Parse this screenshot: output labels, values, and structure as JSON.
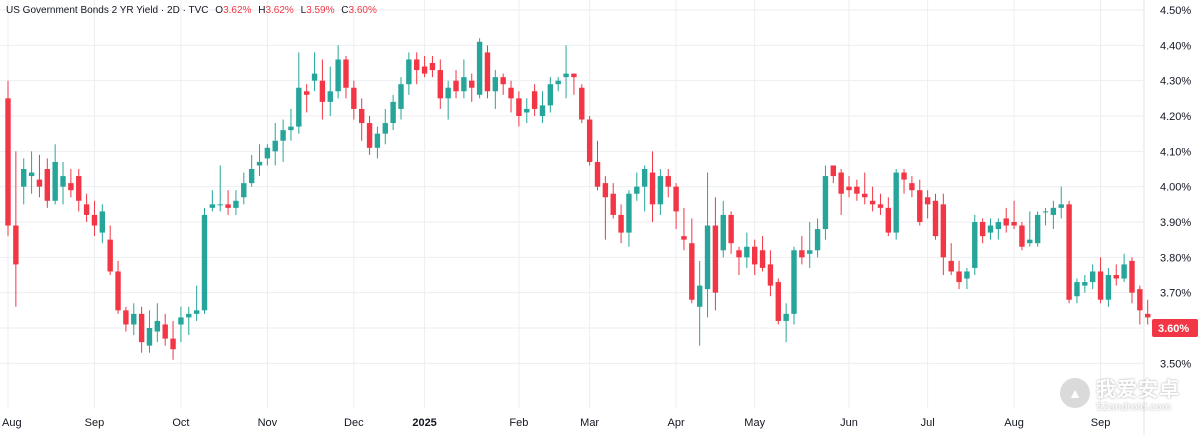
{
  "legend": {
    "symbol": "US Government Bonds 2 YR Yield · 2D · TVC",
    "o_label": "O",
    "o_value": "3.62%",
    "h_label": "H",
    "h_value": "3.62%",
    "l_label": "L",
    "l_value": "3.59%",
    "c_label": "C",
    "c_value": "3.60%"
  },
  "price_tag": "3.60%",
  "watermark": {
    "title": "我爱安卓",
    "subtitle": "52android.com"
  },
  "colors": {
    "up": "#26a69a",
    "down": "#f23645",
    "grid": "#eceef1",
    "text": "#131722",
    "tag": "#f23645"
  },
  "chart_data": {
    "type": "candlestick",
    "ylim": [
      3.45,
      4.5
    ],
    "y_ticks": [
      "4.50%",
      "4.40%",
      "4.30%",
      "4.20%",
      "4.10%",
      "4.00%",
      "3.90%",
      "3.80%",
      "3.70%",
      "3.60%",
      "3.50%"
    ],
    "y_tick_values": [
      4.5,
      4.4,
      4.3,
      4.2,
      4.1,
      4.0,
      3.9,
      3.8,
      3.7,
      3.6,
      3.5
    ],
    "x_labels": [
      {
        "label": "Aug",
        "index": 0,
        "bold": false
      },
      {
        "label": "Sep",
        "index": 11,
        "bold": false
      },
      {
        "label": "Oct",
        "index": 22,
        "bold": false
      },
      {
        "label": "Nov",
        "index": 33,
        "bold": false
      },
      {
        "label": "Dec",
        "index": 44,
        "bold": false
      },
      {
        "label": "2025",
        "index": 53,
        "bold": true
      },
      {
        "label": "Feb",
        "index": 65,
        "bold": false
      },
      {
        "label": "Mar",
        "index": 74,
        "bold": false
      },
      {
        "label": "Apr",
        "index": 85,
        "bold": false
      },
      {
        "label": "May",
        "index": 95,
        "bold": false
      },
      {
        "label": "Jun",
        "index": 107,
        "bold": false
      },
      {
        "label": "Jul",
        "index": 117,
        "bold": false
      },
      {
        "label": "Aug",
        "index": 128,
        "bold": false
      },
      {
        "label": "Sep",
        "index": 139,
        "bold": false
      }
    ],
    "candles": [
      [
        4.25,
        4.3,
        3.86,
        3.89
      ],
      [
        3.89,
        4.1,
        3.66,
        3.78
      ],
      [
        4.0,
        4.08,
        3.95,
        4.05
      ],
      [
        4.03,
        4.1,
        3.98,
        4.04
      ],
      [
        4.02,
        4.09,
        3.97,
        4.0
      ],
      [
        4.05,
        4.08,
        3.94,
        3.96
      ],
      [
        3.96,
        4.12,
        3.95,
        4.07
      ],
      [
        4.0,
        4.07,
        3.95,
        4.03
      ],
      [
        4.01,
        4.05,
        3.97,
        3.99
      ],
      [
        4.03,
        4.05,
        3.93,
        3.96
      ],
      [
        3.95,
        3.98,
        3.9,
        3.92
      ],
      [
        3.92,
        3.96,
        3.86,
        3.89
      ],
      [
        3.87,
        3.95,
        3.84,
        3.93
      ],
      [
        3.85,
        3.89,
        3.75,
        3.76
      ],
      [
        3.76,
        3.79,
        3.64,
        3.65
      ],
      [
        3.65,
        3.66,
        3.59,
        3.61
      ],
      [
        3.61,
        3.67,
        3.58,
        3.64
      ],
      [
        3.64,
        3.66,
        3.53,
        3.56
      ],
      [
        3.55,
        3.65,
        3.53,
        3.6
      ],
      [
        3.59,
        3.67,
        3.56,
        3.62
      ],
      [
        3.61,
        3.64,
        3.55,
        3.57
      ],
      [
        3.57,
        3.62,
        3.51,
        3.54
      ],
      [
        3.61,
        3.66,
        3.56,
        3.63
      ],
      [
        3.63,
        3.66,
        3.58,
        3.64
      ],
      [
        3.64,
        3.72,
        3.62,
        3.65
      ],
      [
        3.65,
        3.94,
        3.64,
        3.92
      ],
      [
        3.94,
        3.99,
        3.93,
        3.95
      ],
      [
        3.95,
        4.06,
        3.93,
        3.95
      ],
      [
        3.95,
        3.99,
        3.92,
        3.94
      ],
      [
        3.94,
        3.99,
        3.92,
        3.96
      ],
      [
        3.97,
        4.04,
        3.95,
        4.01
      ],
      [
        4.01,
        4.09,
        4.0,
        4.05
      ],
      [
        4.06,
        4.12,
        4.03,
        4.07
      ],
      [
        4.08,
        4.12,
        4.06,
        4.11
      ],
      [
        4.1,
        4.18,
        4.06,
        4.13
      ],
      [
        4.13,
        4.19,
        4.07,
        4.16
      ],
      [
        4.16,
        4.22,
        4.13,
        4.17
      ],
      [
        4.17,
        4.38,
        4.15,
        4.28
      ],
      [
        4.27,
        4.29,
        4.21,
        4.26
      ],
      [
        4.3,
        4.38,
        4.27,
        4.32
      ],
      [
        4.3,
        4.36,
        4.19,
        4.24
      ],
      [
        4.24,
        4.34,
        4.2,
        4.27
      ],
      [
        4.27,
        4.4,
        4.25,
        4.36
      ],
      [
        4.36,
        4.37,
        4.25,
        4.28
      ],
      [
        4.28,
        4.3,
        4.19,
        4.22
      ],
      [
        4.22,
        4.25,
        4.13,
        4.18
      ],
      [
        4.18,
        4.2,
        4.09,
        4.11
      ],
      [
        4.11,
        4.17,
        4.08,
        4.15
      ],
      [
        4.15,
        4.22,
        4.12,
        4.18
      ],
      [
        4.18,
        4.26,
        4.16,
        4.24
      ],
      [
        4.22,
        4.31,
        4.19,
        4.29
      ],
      [
        4.29,
        4.38,
        4.26,
        4.36
      ],
      [
        4.36,
        4.38,
        4.29,
        4.33
      ],
      [
        4.34,
        4.37,
        4.31,
        4.32
      ],
      [
        4.35,
        4.37,
        4.31,
        4.33
      ],
      [
        4.33,
        4.36,
        4.22,
        4.25
      ],
      [
        4.25,
        4.3,
        4.19,
        4.28
      ],
      [
        4.3,
        4.33,
        4.25,
        4.27
      ],
      [
        4.27,
        4.36,
        4.25,
        4.31
      ],
      [
        4.3,
        4.32,
        4.24,
        4.28
      ],
      [
        4.26,
        4.42,
        4.25,
        4.41
      ],
      [
        4.38,
        4.4,
        4.25,
        4.27
      ],
      [
        4.27,
        4.33,
        4.22,
        4.31
      ],
      [
        4.31,
        4.32,
        4.26,
        4.29
      ],
      [
        4.28,
        4.3,
        4.21,
        4.25
      ],
      [
        4.25,
        4.27,
        4.17,
        4.2
      ],
      [
        4.21,
        4.25,
        4.18,
        4.22
      ],
      [
        4.27,
        4.29,
        4.2,
        4.22
      ],
      [
        4.2,
        4.27,
        4.18,
        4.23
      ],
      [
        4.23,
        4.31,
        4.21,
        4.29
      ],
      [
        4.29,
        4.31,
        4.27,
        4.3
      ],
      [
        4.31,
        4.4,
        4.25,
        4.32
      ],
      [
        4.32,
        4.32,
        4.26,
        4.31
      ],
      [
        4.28,
        4.29,
        4.18,
        4.19
      ],
      [
        4.19,
        4.2,
        4.06,
        4.07
      ],
      [
        4.07,
        4.13,
        3.99,
        4.0
      ],
      [
        4.01,
        4.03,
        3.85,
        3.97
      ],
      [
        3.98,
        4.01,
        3.91,
        3.92
      ],
      [
        3.92,
        3.95,
        3.84,
        3.87
      ],
      [
        3.87,
        3.99,
        3.83,
        3.98
      ],
      [
        3.98,
        4.04,
        3.96,
        4.0
      ],
      [
        4.0,
        4.06,
        3.93,
        4.05
      ],
      [
        4.04,
        4.1,
        3.9,
        3.95
      ],
      [
        3.95,
        4.05,
        3.92,
        4.03
      ],
      [
        4.03,
        4.05,
        3.97,
        4.0
      ],
      [
        4.0,
        4.01,
        3.88,
        3.93
      ],
      [
        3.86,
        3.94,
        3.82,
        3.85
      ],
      [
        3.84,
        3.91,
        3.67,
        3.68
      ],
      [
        3.66,
        3.79,
        3.55,
        3.72
      ],
      [
        3.71,
        4.04,
        3.63,
        3.89
      ],
      [
        3.89,
        3.97,
        3.65,
        3.7
      ],
      [
        3.82,
        3.96,
        3.8,
        3.92
      ],
      [
        3.92,
        3.93,
        3.81,
        3.84
      ],
      [
        3.82,
        3.83,
        3.75,
        3.8
      ],
      [
        3.8,
        3.87,
        3.77,
        3.83
      ],
      [
        3.83,
        3.85,
        3.75,
        3.78
      ],
      [
        3.82,
        3.86,
        3.76,
        3.77
      ],
      [
        3.78,
        3.82,
        3.69,
        3.72
      ],
      [
        3.73,
        3.74,
        3.61,
        3.62
      ],
      [
        3.62,
        3.67,
        3.56,
        3.64
      ],
      [
        3.64,
        3.83,
        3.61,
        3.82
      ],
      [
        3.82,
        3.86,
        3.78,
        3.8
      ],
      [
        3.81,
        3.9,
        3.77,
        3.82
      ],
      [
        3.82,
        3.91,
        3.8,
        3.88
      ],
      [
        3.88,
        4.06,
        3.85,
        4.03
      ],
      [
        4.06,
        4.06,
        4.01,
        4.03
      ],
      [
        4.04,
        4.05,
        3.92,
        3.98
      ],
      [
        4.0,
        4.03,
        3.97,
        3.99
      ],
      [
        4.0,
        4.02,
        3.96,
        3.98
      ],
      [
        3.98,
        4.04,
        3.95,
        3.97
      ],
      [
        3.96,
        4.0,
        3.93,
        3.95
      ],
      [
        3.95,
        3.98,
        3.92,
        3.94
      ],
      [
        3.94,
        3.97,
        3.86,
        3.87
      ],
      [
        3.87,
        4.05,
        3.85,
        4.04
      ],
      [
        4.04,
        4.05,
        3.98,
        4.02
      ],
      [
        4.01,
        4.03,
        3.97,
        3.99
      ],
      [
        3.99,
        4.02,
        3.89,
        3.9
      ],
      [
        3.97,
        3.99,
        3.91,
        3.95
      ],
      [
        3.96,
        3.98,
        3.85,
        3.86
      ],
      [
        3.95,
        3.98,
        3.75,
        3.8
      ],
      [
        3.79,
        3.84,
        3.75,
        3.76
      ],
      [
        3.76,
        3.79,
        3.71,
        3.73
      ],
      [
        3.74,
        3.77,
        3.71,
        3.76
      ],
      [
        3.77,
        3.92,
        3.75,
        3.9
      ],
      [
        3.9,
        3.91,
        3.84,
        3.86
      ],
      [
        3.87,
        3.91,
        3.85,
        3.89
      ],
      [
        3.88,
        3.91,
        3.85,
        3.9
      ],
      [
        3.91,
        3.94,
        3.87,
        3.89
      ],
      [
        3.9,
        3.96,
        3.88,
        3.89
      ],
      [
        3.89,
        3.9,
        3.82,
        3.83
      ],
      [
        3.84,
        3.93,
        3.83,
        3.85
      ],
      [
        3.84,
        3.93,
        3.83,
        3.92
      ],
      [
        3.93,
        3.94,
        3.89,
        3.93
      ],
      [
        3.92,
        3.96,
        3.88,
        3.94
      ],
      [
        3.94,
        4.0,
        3.91,
        3.95
      ],
      [
        3.95,
        3.96,
        3.67,
        3.68
      ],
      [
        3.69,
        3.74,
        3.67,
        3.73
      ],
      [
        3.72,
        3.75,
        3.7,
        3.73
      ],
      [
        3.73,
        3.78,
        3.71,
        3.76
      ],
      [
        3.76,
        3.8,
        3.67,
        3.68
      ],
      [
        3.68,
        3.77,
        3.66,
        3.75
      ],
      [
        3.75,
        3.78,
        3.72,
        3.74
      ],
      [
        3.74,
        3.81,
        3.73,
        3.78
      ],
      [
        3.79,
        3.8,
        3.67,
        3.7
      ],
      [
        3.71,
        3.72,
        3.61,
        3.65
      ],
      [
        3.64,
        3.68,
        3.61,
        3.63
      ],
      [
        3.62,
        3.62,
        3.59,
        3.6
      ]
    ]
  }
}
